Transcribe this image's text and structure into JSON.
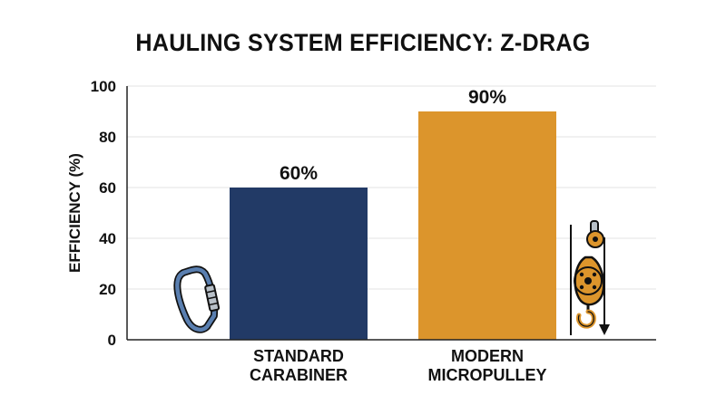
{
  "chart_data": {
    "type": "bar",
    "title": "HAULING SYSTEM EFFICIENCY: Z-DRAG",
    "ylabel": "EFFICIENCY (%)",
    "xlabel": "",
    "ylim": [
      0,
      100
    ],
    "yticks": [
      0,
      20,
      40,
      60,
      80,
      100
    ],
    "grid": true,
    "categories": [
      [
        "STANDARD",
        "CARABINER"
      ],
      [
        "MODERN",
        "MICROPULLEY"
      ]
    ],
    "values": [
      60,
      90
    ],
    "data_labels": [
      "60%",
      "90%"
    ],
    "colors": [
      "#223a66",
      "#dc952c"
    ],
    "icons": [
      "carabiner-icon",
      "pulley-icon"
    ]
  }
}
